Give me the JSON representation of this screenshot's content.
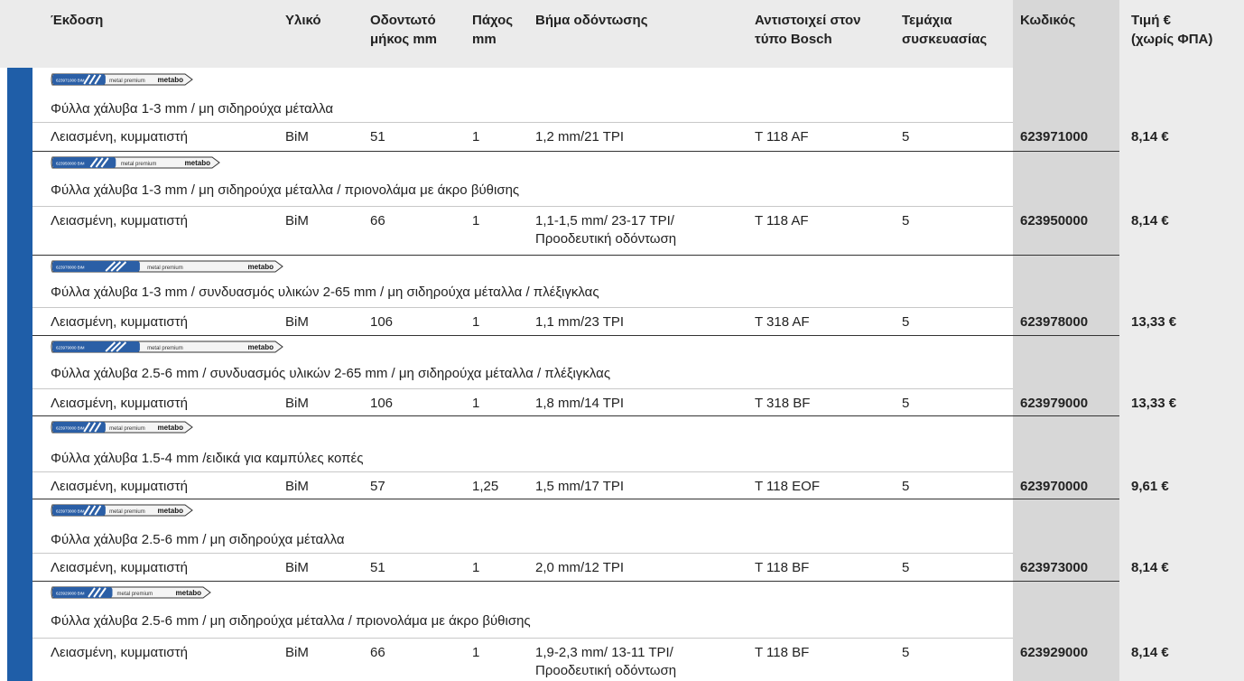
{
  "header": {
    "columns": [
      [
        "Έκδοση"
      ],
      [
        "Υλικό"
      ],
      [
        "Οδοντωτό",
        "μήκος mm"
      ],
      [
        "Πάχος",
        "mm"
      ],
      [
        "Βήμα οδόντωσης"
      ],
      [
        "Αντιστοιχεί στον",
        "τύπο Bosch"
      ],
      [
        "Τεμάχια",
        "συσκευασίας"
      ],
      [
        "Κωδικός"
      ],
      [
        "Τιμή €",
        "(χωρίς ΦΠΑ)"
      ]
    ]
  },
  "groups": [
    {
      "blade": {
        "code": "623971000 BiM",
        "line": "metal premium",
        "brand": "metabo"
      },
      "description": "Φύλλα χάλυβα 1-3 mm / μη σιδηρούχα μέταλλα",
      "row": [
        "Λειασμένη, κυμματιστή",
        "BiM",
        "51",
        "1",
        "1,2 mm/21 TPI",
        "T 118 AF",
        "5",
        "623971000",
        "8,14 €"
      ]
    },
    {
      "blade": {
        "code": "623950000 BiM",
        "line": "metal premium",
        "brand": "metabo"
      },
      "description": "Φύλλα χάλυβα 1-3 mm / μη σιδηρούχα μέταλλα / πριονολάμα με άκρο βύθισης",
      "row": [
        "Λειασμένη, κυμματιστή",
        "BiM",
        "66",
        "1",
        "1,1-1,5 mm/ 23-17 TPI/Προοδευτική οδόντωση",
        "T 118 AF",
        "5",
        "623950000",
        "8,14 €"
      ]
    },
    {
      "blade": {
        "code": "623978000 BiM",
        "line": "metal premium",
        "brand": "metabo"
      },
      "description": "Φύλλα χάλυβα 1-3 mm / συνδυασμός υλικών 2-65 mm / μη σιδηρούχα μέταλλα / πλέξιγκλας",
      "row": [
        "Λειασμένη, κυμματιστή",
        "BiM",
        "106",
        "1",
        "1,1 mm/23 TPI",
        "T 318 AF",
        "5",
        "623978000",
        "13,33 €"
      ]
    },
    {
      "blade": {
        "code": "623979000 BiM",
        "line": "metal premium",
        "brand": "metabo"
      },
      "description": "Φύλλα χάλυβα 2.5-6 mm / συνδυασμός υλικών 2-65 mm / μη σιδηρούχα μέταλλα / πλέξιγκλας",
      "row": [
        "Λειασμένη, κυμματιστή",
        "BiM",
        "106",
        "1",
        "1,8 mm/14 TPI",
        "T 318 BF",
        "5",
        "623979000",
        "13,33 €"
      ]
    },
    {
      "blade": {
        "code": "623970000 BiM",
        "line": "metal premium",
        "brand": "metabo"
      },
      "description": "Φύλλα χάλυβα 1.5-4 mm /ειδικά για καμπύλες κοπές",
      "row": [
        "Λειασμένη, κυμματιστή",
        "BiM",
        "57",
        "1,25",
        "1,5 mm/17 TPI",
        "T 118 EOF",
        "5",
        "623970000",
        "9,61 €"
      ]
    },
    {
      "blade": {
        "code": "623973000 BiM",
        "line": "metal premium",
        "brand": "metabo"
      },
      "description": "Φύλλα χάλυβα 2.5-6 mm / μη σιδηρούχα μέταλλα",
      "row": [
        "Λειασμένη, κυμματιστή",
        "BiM",
        "51",
        "1",
        "2,0 mm/12 TPI",
        "T 118 BF",
        "5",
        "623973000",
        "8,14 €"
      ]
    },
    {
      "blade": {
        "code": "623929000 BiM",
        "line": "metal premium",
        "brand": "metabo"
      },
      "description": "Φύλλα χάλυβα 2.5-6 mm / μη σιδηρούχα μέταλλα / πριονολάμα με άκρο βύθισης",
      "row": [
        "Λειασμένη, κυμματιστή",
        "BiM",
        "66",
        "1",
        "1,9-2,3 mm/ 13-11 TPI/Προοδευτική οδόντωση",
        "T 118 BF",
        "5",
        "623929000",
        "8,14 €"
      ]
    }
  ]
}
